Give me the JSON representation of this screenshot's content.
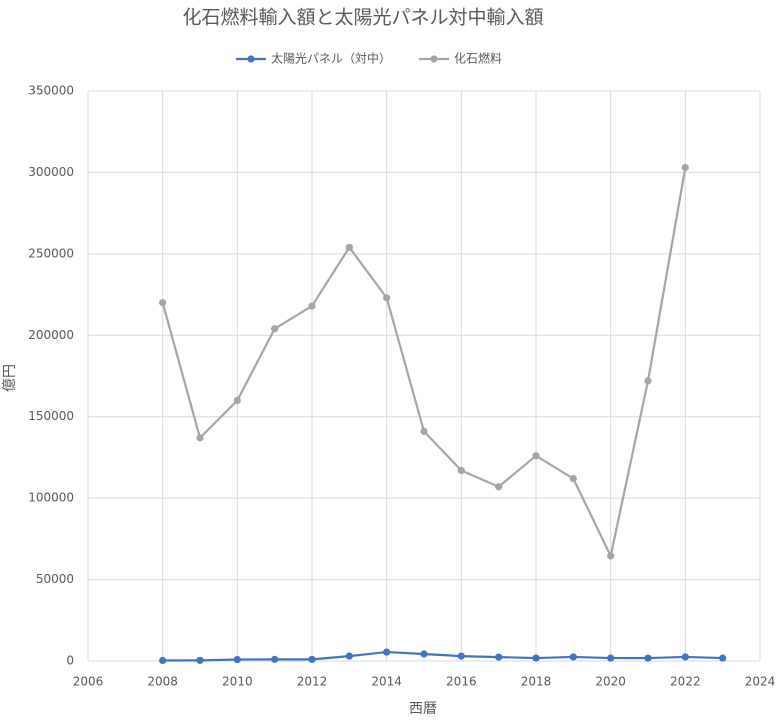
{
  "chart_data": {
    "type": "line",
    "title": "化石燃料輸入額と太陽光パネル対中輸入額",
    "x_label": "西暦",
    "y_label": "億円",
    "x": [
      2008,
      2009,
      2010,
      2011,
      2012,
      2013,
      2014,
      2015,
      2016,
      2017,
      2018,
      2019,
      2020,
      2021,
      2022,
      2023
    ],
    "series": [
      {
        "name": "太陽光パネル（対中）",
        "color": "#4472c4",
        "values": [
          300,
          400,
          900,
          1000,
          1000,
          3000,
          5500,
          4300,
          3000,
          2400,
          1800,
          2500,
          1800,
          1800,
          2500,
          1800
        ]
      },
      {
        "name": "化石燃料",
        "color": "#a5a5a5",
        "values": [
          220000,
          137000,
          160000,
          204000,
          218000,
          254000,
          223000,
          141000,
          117000,
          107000,
          126000,
          112000,
          64500,
          172000,
          303000,
          null
        ]
      }
    ],
    "xlim": [
      2006,
      2024
    ],
    "xticks": [
      2006,
      2008,
      2010,
      2012,
      2014,
      2016,
      2018,
      2020,
      2022,
      2024
    ],
    "ylim": [
      0,
      350000
    ],
    "yticks": [
      0,
      50000,
      100000,
      150000,
      200000,
      250000,
      300000,
      350000
    ],
    "grid": true,
    "legend": "top"
  }
}
